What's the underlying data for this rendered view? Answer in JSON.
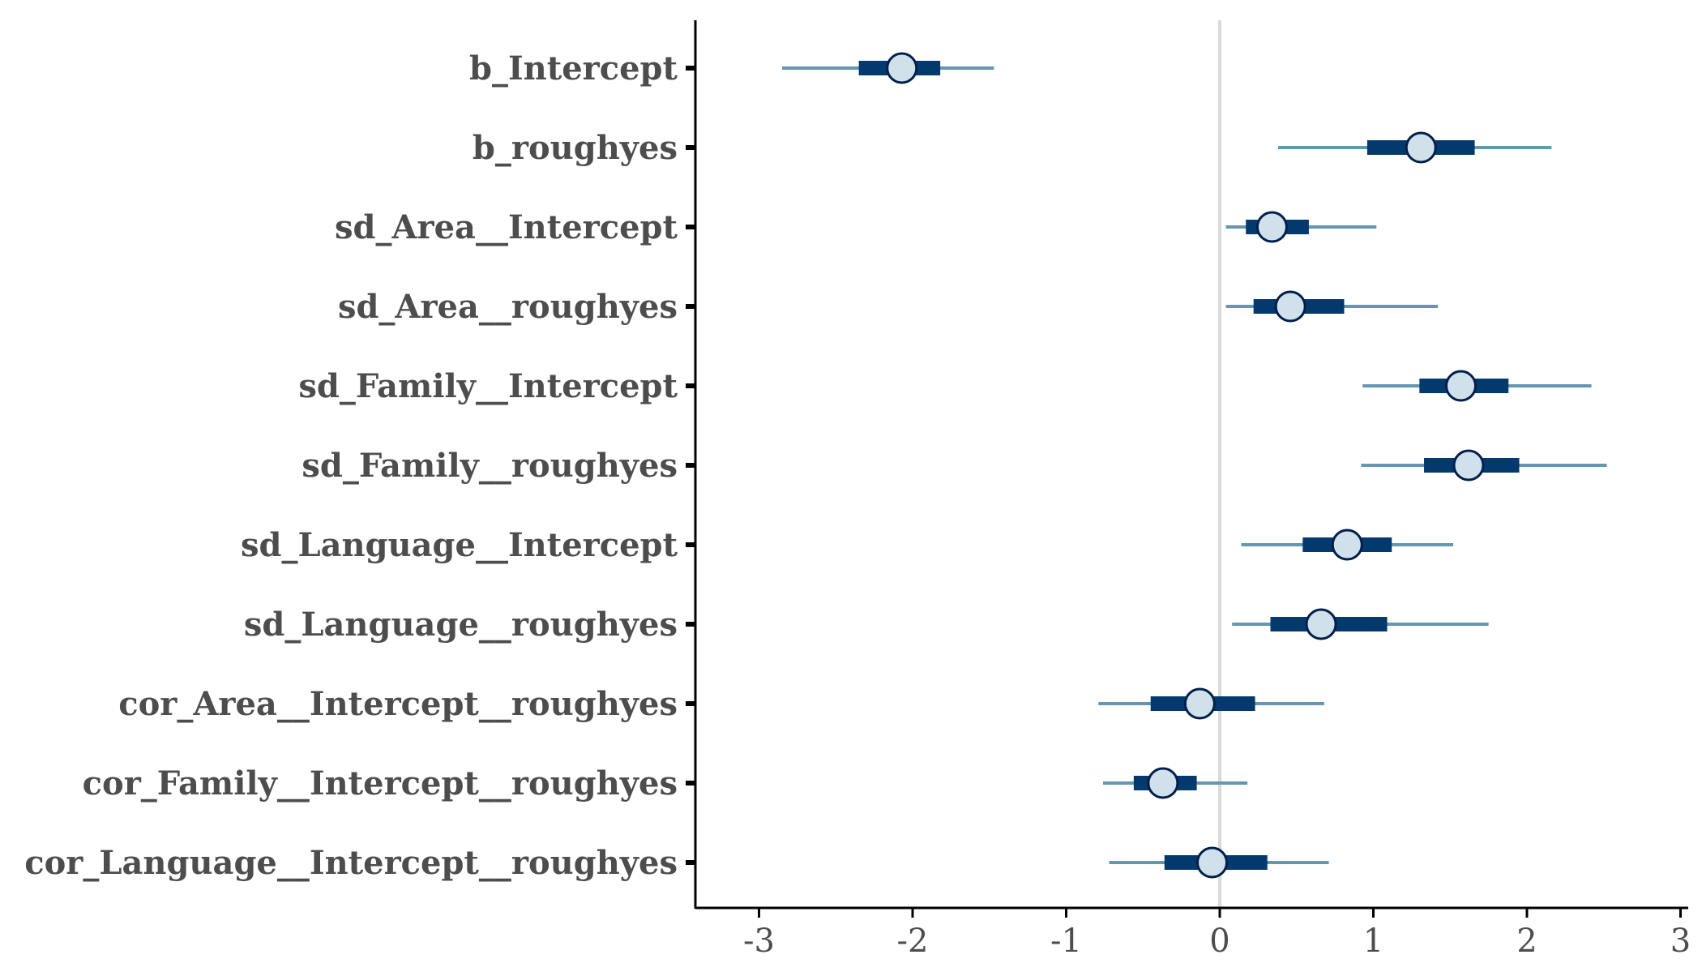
{
  "chart_data": {
    "type": "interval",
    "title": "",
    "xlabel": "",
    "ylabel": "",
    "xlim": [
      -3.4,
      3.05
    ],
    "xticks": [
      -3,
      -2,
      -1,
      0,
      1,
      2,
      3
    ],
    "xtick_labels": [
      "-3",
      "-2",
      "-1",
      "0",
      "1",
      "2",
      "3"
    ],
    "reference_line": 0,
    "grid": false,
    "colors": {
      "outer_interval": "#6497b1",
      "inner_interval": "#03396c",
      "point_fill": "#d1e1ec",
      "point_stroke": "#011f4b",
      "reference_line": "#d9d9d9",
      "axis": "#000000",
      "label_text": "#4d4d4d"
    },
    "parameters": [
      {
        "label": "b_Intercept",
        "estimate": -2.07,
        "inner": [
          -2.35,
          -1.82
        ],
        "outer": [
          -2.85,
          -1.47
        ]
      },
      {
        "label": "b_roughyes",
        "estimate": 1.31,
        "inner": [
          0.96,
          1.66
        ],
        "outer": [
          0.38,
          2.16
        ]
      },
      {
        "label": "sd_Area__Intercept",
        "estimate": 0.34,
        "inner": [
          0.17,
          0.58
        ],
        "outer": [
          0.04,
          1.02
        ]
      },
      {
        "label": "sd_Area__roughyes",
        "estimate": 0.46,
        "inner": [
          0.22,
          0.81
        ],
        "outer": [
          0.04,
          1.42
        ]
      },
      {
        "label": "sd_Family__Intercept",
        "estimate": 1.57,
        "inner": [
          1.3,
          1.88
        ],
        "outer": [
          0.93,
          2.42
        ]
      },
      {
        "label": "sd_Family__roughyes",
        "estimate": 1.62,
        "inner": [
          1.33,
          1.95
        ],
        "outer": [
          0.92,
          2.52
        ]
      },
      {
        "label": "sd_Language__Intercept",
        "estimate": 0.83,
        "inner": [
          0.54,
          1.12
        ],
        "outer": [
          0.14,
          1.52
        ]
      },
      {
        "label": "sd_Language__roughyes",
        "estimate": 0.66,
        "inner": [
          0.33,
          1.09
        ],
        "outer": [
          0.08,
          1.75
        ]
      },
      {
        "label": "cor_Area__Intercept__roughyes",
        "estimate": -0.13,
        "inner": [
          -0.45,
          0.23
        ],
        "outer": [
          -0.79,
          0.68
        ]
      },
      {
        "label": "cor_Family__Intercept__roughyes",
        "estimate": -0.37,
        "inner": [
          -0.56,
          -0.15
        ],
        "outer": [
          -0.76,
          0.18
        ]
      },
      {
        "label": "cor_Language__Intercept__roughyes",
        "estimate": -0.05,
        "inner": [
          -0.36,
          0.31
        ],
        "outer": [
          -0.72,
          0.71
        ]
      }
    ]
  }
}
